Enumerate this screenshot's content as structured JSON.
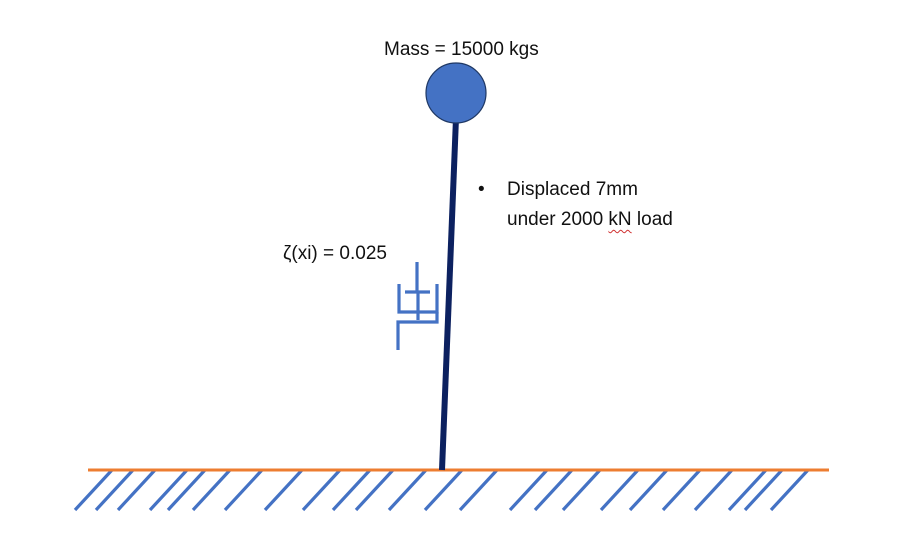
{
  "mass_label": "Mass = 15000 kgs",
  "damping_label": "ζ(xi) = 0.025",
  "note": {
    "bullet": "•",
    "line1": "Displaced 7mm",
    "line2_before": "under 2000 ",
    "line2_flagged": "kN",
    "line2_after": " load"
  },
  "colors": {
    "mass": "#4472c4",
    "mass_outline": "#1f3864",
    "column": "#0c2160",
    "damper": "#4472c4",
    "ground_line": "#ed7d31",
    "hatch": "#4472c4",
    "spellcheck": "#d03030"
  }
}
